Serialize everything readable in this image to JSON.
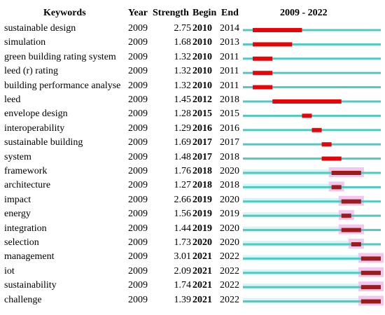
{
  "columns": {
    "keywords": "Keywords",
    "year": "Year",
    "strength": "Strength",
    "begin": "Begin",
    "end": "End",
    "range": "2009 - 2022"
  },
  "colors": {
    "baseline": "#4fc9c3",
    "burst": "#e8050a",
    "burst_recent": "#9c1c1a",
    "highlight": "#f3c6ef",
    "light": "#d6f5f3"
  },
  "chart_data": {
    "type": "table",
    "title": "",
    "timeline": {
      "start": 2009,
      "end": 2022
    },
    "rows": [
      {
        "keyword": "sustainable design",
        "year": "2009",
        "strength": "2.75",
        "begin": "2010",
        "end": "2014"
      },
      {
        "keyword": "simulation",
        "year": "2009",
        "strength": "1.68",
        "begin": "2010",
        "end": "2013"
      },
      {
        "keyword": "green building rating system",
        "year": "2009",
        "strength": "1.32",
        "begin": "2010",
        "end": "2011"
      },
      {
        "keyword": "leed (r) rating",
        "year": "2009",
        "strength": "1.32",
        "begin": "2010",
        "end": "2011"
      },
      {
        "keyword": "building performance analyse",
        "year": "2009",
        "strength": "1.32",
        "begin": "2010",
        "end": "2011"
      },
      {
        "keyword": "leed",
        "year": "2009",
        "strength": "1.45",
        "begin": "2012",
        "end": "2018"
      },
      {
        "keyword": "envelope design",
        "year": "2009",
        "strength": "1.28",
        "begin": "2015",
        "end": "2015"
      },
      {
        "keyword": "interoperability",
        "year": "2009",
        "strength": "1.29",
        "begin": "2016",
        "end": "2016"
      },
      {
        "keyword": "sustainable building",
        "year": "2009",
        "strength": "1.69",
        "begin": "2017",
        "end": "2017"
      },
      {
        "keyword": "system",
        "year": "2009",
        "strength": "1.48",
        "begin": "2017",
        "end": "2018"
      },
      {
        "keyword": "framework",
        "year": "2009",
        "strength": "1.76",
        "begin": "2018",
        "end": "2020"
      },
      {
        "keyword": "architecture",
        "year": "2009",
        "strength": "1.27",
        "begin": "2018",
        "end": "2018"
      },
      {
        "keyword": "impact",
        "year": "2009",
        "strength": "2.66",
        "begin": "2019",
        "end": "2020"
      },
      {
        "keyword": "energy",
        "year": "2009",
        "strength": "1.56",
        "begin": "2019",
        "end": "2019"
      },
      {
        "keyword": "integration",
        "year": "2009",
        "strength": "1.44",
        "begin": "2019",
        "end": "2020"
      },
      {
        "keyword": "selection",
        "year": "2009",
        "strength": "1.73",
        "begin": "2020",
        "end": "2020"
      },
      {
        "keyword": "management",
        "year": "2009",
        "strength": "3.01",
        "begin": "2021",
        "end": "2022"
      },
      {
        "keyword": "iot",
        "year": "2009",
        "strength": "2.09",
        "begin": "2021",
        "end": "2022"
      },
      {
        "keyword": "sustainability",
        "year": "2009",
        "strength": "1.74",
        "begin": "2021",
        "end": "2022"
      },
      {
        "keyword": "challenge",
        "year": "2009",
        "strength": "1.39",
        "begin": "2021",
        "end": "2022"
      }
    ]
  }
}
